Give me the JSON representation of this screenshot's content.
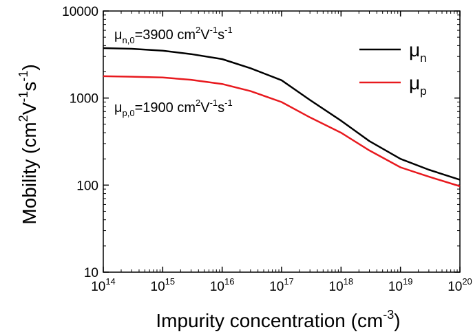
{
  "chart_data": {
    "type": "line",
    "xscale": "log",
    "yscale": "log",
    "xlim": [
      100000000000000.0,
      1e+20
    ],
    "ylim": [
      10,
      10000
    ],
    "x_ticks": [
      {
        "base": "10",
        "exp": "14"
      },
      {
        "base": "10",
        "exp": "15"
      },
      {
        "base": "10",
        "exp": "16"
      },
      {
        "base": "10",
        "exp": "17"
      },
      {
        "base": "10",
        "exp": "18"
      },
      {
        "base": "10",
        "exp": "19"
      },
      {
        "base": "10",
        "exp": "20"
      }
    ],
    "y_ticks": [
      "10",
      "100",
      "1000",
      "10000"
    ],
    "xlabel": {
      "main": "Impurity concentration (cm",
      "sup": "-3",
      "tail": ")"
    },
    "ylabel": {
      "main": "Mobility (cm",
      "sup1": "2",
      "mid": "V",
      "sup2": "-1",
      "mid2": "s",
      "sup3": "-1",
      "tail": ")"
    },
    "annotations": [
      {
        "mu": "μ",
        "sub": "n,0",
        "value": "=3900 cm",
        "s1": "2",
        "v": "V",
        "s2": "-1",
        "s": "s",
        "s3": "-1"
      },
      {
        "mu": "μ",
        "sub": "p,0",
        "value": "=1900 cm",
        "s1": "2",
        "v": "V",
        "s2": "-1",
        "s": "s",
        "s3": "-1"
      }
    ],
    "legend": {
      "position": "top-right"
    },
    "grid": false,
    "series": [
      {
        "name": "μn",
        "legend_base": "μ",
        "legend_sub": "n",
        "color": "#000000",
        "x": [
          100000000000000.0,
          300000000000000.0,
          1000000000000000.0,
          3000000000000000.0,
          1e+16,
          3e+16,
          1e+17,
          3e+17,
          1e+18,
          3e+18,
          1e+19,
          3e+19,
          1e+20
        ],
        "y": [
          3750,
          3680,
          3500,
          3200,
          2800,
          2200,
          1600,
          950,
          550,
          320,
          200,
          150,
          115
        ]
      },
      {
        "name": "μp",
        "legend_base": "μ",
        "legend_sub": "p",
        "color": "#e8191e",
        "x": [
          100000000000000.0,
          300000000000000.0,
          1000000000000000.0,
          3000000000000000.0,
          1e+16,
          3e+16,
          1e+17,
          3e+17,
          1e+18,
          3e+18,
          1e+19,
          3e+19,
          1e+20
        ],
        "y": [
          1780,
          1760,
          1720,
          1620,
          1450,
          1200,
          900,
          600,
          400,
          250,
          160,
          125,
          97
        ]
      }
    ]
  }
}
